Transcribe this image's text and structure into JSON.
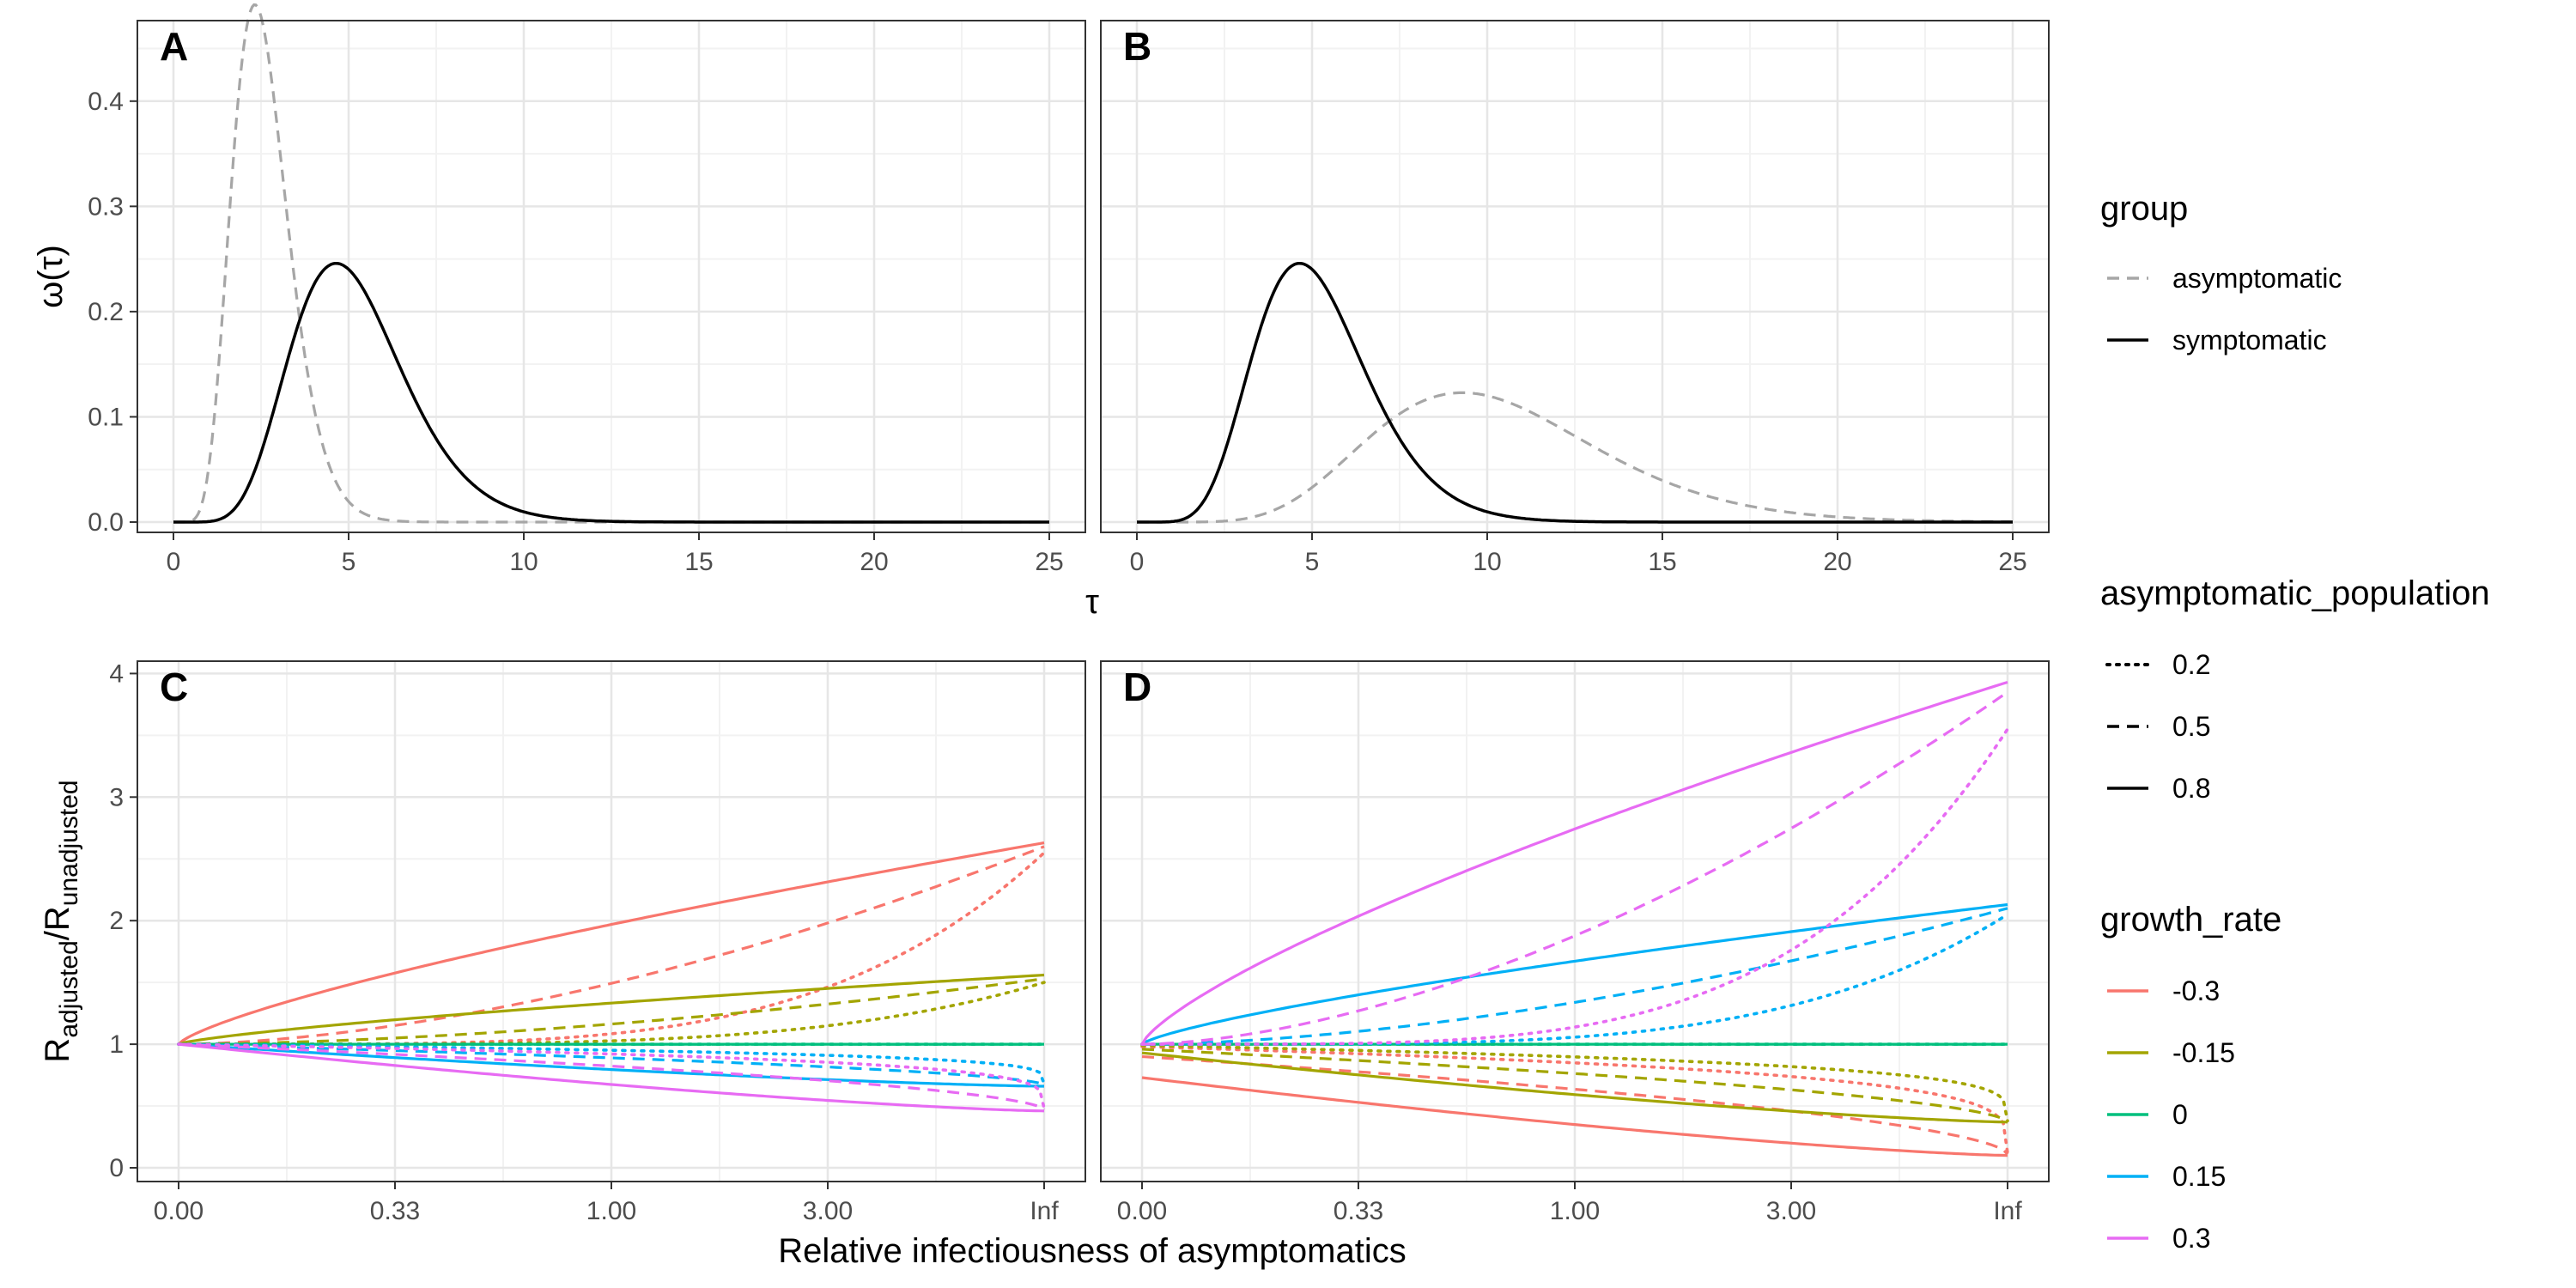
{
  "chart_data": [
    {
      "panel": "A",
      "type": "line",
      "x_ticks": [
        "0",
        "5",
        "10",
        "15",
        "20",
        "25"
      ],
      "y_ticks": [
        "0.0",
        "0.1",
        "0.2",
        "0.3",
        "0.4"
      ],
      "xlim": [
        0,
        25
      ],
      "ylim": [
        0,
        0.47
      ],
      "series": [
        {
          "name": "asymptomatic",
          "color": "#a6a6a6",
          "dash": "dashed",
          "mean": 2.6,
          "sd": 0.85
        },
        {
          "name": "symptomatic",
          "color": "#000000",
          "dash": "solid",
          "mean": 5.2,
          "sd": 1.7
        }
      ]
    },
    {
      "panel": "B",
      "type": "line",
      "x_ticks": [
        "0",
        "5",
        "10",
        "15",
        "20",
        "25"
      ],
      "y_ticks": [
        "0.0",
        "0.1",
        "0.2",
        "0.3",
        "0.4"
      ],
      "xlim": [
        0,
        25
      ],
      "ylim": [
        0,
        0.47
      ],
      "series": [
        {
          "name": "asymptomatic",
          "color": "#a6a6a6",
          "dash": "dashed",
          "mean": 10.4,
          "sd": 3.4
        },
        {
          "name": "symptomatic",
          "color": "#000000",
          "dash": "solid",
          "mean": 5.2,
          "sd": 1.7
        }
      ]
    },
    {
      "panel": "C",
      "type": "line",
      "x_ticks": [
        "0.00",
        "0.33",
        "1.00",
        "3.00",
        "Inf"
      ],
      "y_ticks": [
        "0",
        "1",
        "2",
        "3",
        "4"
      ],
      "ylim": [
        0,
        4.1
      ],
      "endpoints": [
        {
          "growth_rate": "-0.3",
          "asymptomatic_population": "0.2",
          "start": 1.0,
          "end": 2.55
        },
        {
          "growth_rate": "-0.3",
          "asymptomatic_population": "0.5",
          "start": 1.0,
          "end": 2.6
        },
        {
          "growth_rate": "-0.3",
          "asymptomatic_population": "0.8",
          "start": 1.0,
          "end": 2.63
        },
        {
          "growth_rate": "-0.15",
          "asymptomatic_population": "0.2",
          "start": 1.0,
          "end": 1.5
        },
        {
          "growth_rate": "-0.15",
          "asymptomatic_population": "0.5",
          "start": 1.0,
          "end": 1.53
        },
        {
          "growth_rate": "-0.15",
          "asymptomatic_population": "0.8",
          "start": 1.0,
          "end": 1.56
        },
        {
          "growth_rate": "0",
          "asymptomatic_population": "0.2",
          "start": 1.0,
          "end": 1.0
        },
        {
          "growth_rate": "0",
          "asymptomatic_population": "0.5",
          "start": 1.0,
          "end": 1.0
        },
        {
          "growth_rate": "0",
          "asymptomatic_population": "0.8",
          "start": 1.0,
          "end": 1.0
        },
        {
          "growth_rate": "0.15",
          "asymptomatic_population": "0.2",
          "start": 1.0,
          "end": 0.68
        },
        {
          "growth_rate": "0.15",
          "asymptomatic_population": "0.5",
          "start": 1.0,
          "end": 0.67
        },
        {
          "growth_rate": "0.15",
          "asymptomatic_population": "0.8",
          "start": 1.0,
          "end": 0.66
        },
        {
          "growth_rate": "0.3",
          "asymptomatic_population": "0.2",
          "start": 1.0,
          "end": 0.48
        },
        {
          "growth_rate": "0.3",
          "asymptomatic_population": "0.5",
          "start": 1.0,
          "end": 0.47
        },
        {
          "growth_rate": "0.3",
          "asymptomatic_population": "0.8",
          "start": 1.0,
          "end": 0.46
        }
      ]
    },
    {
      "panel": "D",
      "type": "line",
      "x_ticks": [
        "0.00",
        "0.33",
        "1.00",
        "3.00",
        "Inf"
      ],
      "y_ticks": [
        "0",
        "1",
        "2",
        "3",
        "4"
      ],
      "ylim": [
        0,
        4.1
      ],
      "endpoints": [
        {
          "growth_rate": "-0.3",
          "asymptomatic_population": "0.2",
          "start": 0.98,
          "end": 0.12
        },
        {
          "growth_rate": "-0.3",
          "asymptomatic_population": "0.5",
          "start": 0.9,
          "end": 0.11
        },
        {
          "growth_rate": "-0.3",
          "asymptomatic_population": "0.8",
          "start": 0.73,
          "end": 0.1
        },
        {
          "growth_rate": "-0.15",
          "asymptomatic_population": "0.2",
          "start": 0.99,
          "end": 0.38
        },
        {
          "growth_rate": "-0.15",
          "asymptomatic_population": "0.5",
          "start": 0.96,
          "end": 0.37
        },
        {
          "growth_rate": "-0.15",
          "asymptomatic_population": "0.8",
          "start": 0.93,
          "end": 0.37
        },
        {
          "growth_rate": "0",
          "asymptomatic_population": "0.2",
          "start": 1.0,
          "end": 1.0
        },
        {
          "growth_rate": "0",
          "asymptomatic_population": "0.5",
          "start": 1.0,
          "end": 1.0
        },
        {
          "growth_rate": "0",
          "asymptomatic_population": "0.8",
          "start": 1.0,
          "end": 1.0
        },
        {
          "growth_rate": "0.15",
          "asymptomatic_population": "0.2",
          "start": 1.0,
          "end": 2.05
        },
        {
          "growth_rate": "0.15",
          "asymptomatic_population": "0.5",
          "start": 1.0,
          "end": 2.1
        },
        {
          "growth_rate": "0.15",
          "asymptomatic_population": "0.8",
          "start": 1.0,
          "end": 2.13
        },
        {
          "growth_rate": "0.3",
          "asymptomatic_population": "0.2",
          "start": 1.0,
          "end": 3.55
        },
        {
          "growth_rate": "0.3",
          "asymptomatic_population": "0.5",
          "start": 1.0,
          "end": 3.85
        },
        {
          "growth_rate": "0.3",
          "asymptomatic_population": "0.8",
          "start": 1.0,
          "end": 3.93
        }
      ]
    }
  ],
  "labels": {
    "panel_a": "A",
    "panel_b": "B",
    "panel_c": "C",
    "panel_d": "D",
    "top_xlabel": "τ",
    "top_ylabel": "ω(τ)",
    "bottom_xlabel": "Relative infectiousness of asymptomatics",
    "bottom_ylabel_base1": "R",
    "bottom_ylabel_sub1": "adjusted",
    "bottom_ylabel_sep": "/R",
    "bottom_ylabel_sub2": "unadjusted"
  },
  "legend": {
    "group_title": "group",
    "group_items": [
      {
        "label": "asymptomatic",
        "color": "#a6a6a6",
        "dash": "dashed"
      },
      {
        "label": "symptomatic",
        "color": "#000000",
        "dash": "solid"
      }
    ],
    "pop_title": "asymptomatic_population",
    "pop_items": [
      {
        "label": "0.2",
        "dash": "dotted"
      },
      {
        "label": "0.5",
        "dash": "dashed"
      },
      {
        "label": "0.8",
        "dash": "solid"
      }
    ],
    "growth_title": "growth_rate",
    "growth_items": [
      {
        "label": "-0.3",
        "color": "#f8766d"
      },
      {
        "label": "-0.15",
        "color": "#a3a500"
      },
      {
        "label": "0",
        "color": "#00bf7d"
      },
      {
        "label": "0.15",
        "color": "#00b0f6"
      },
      {
        "label": "0.3",
        "color": "#e76bf3"
      }
    ]
  }
}
